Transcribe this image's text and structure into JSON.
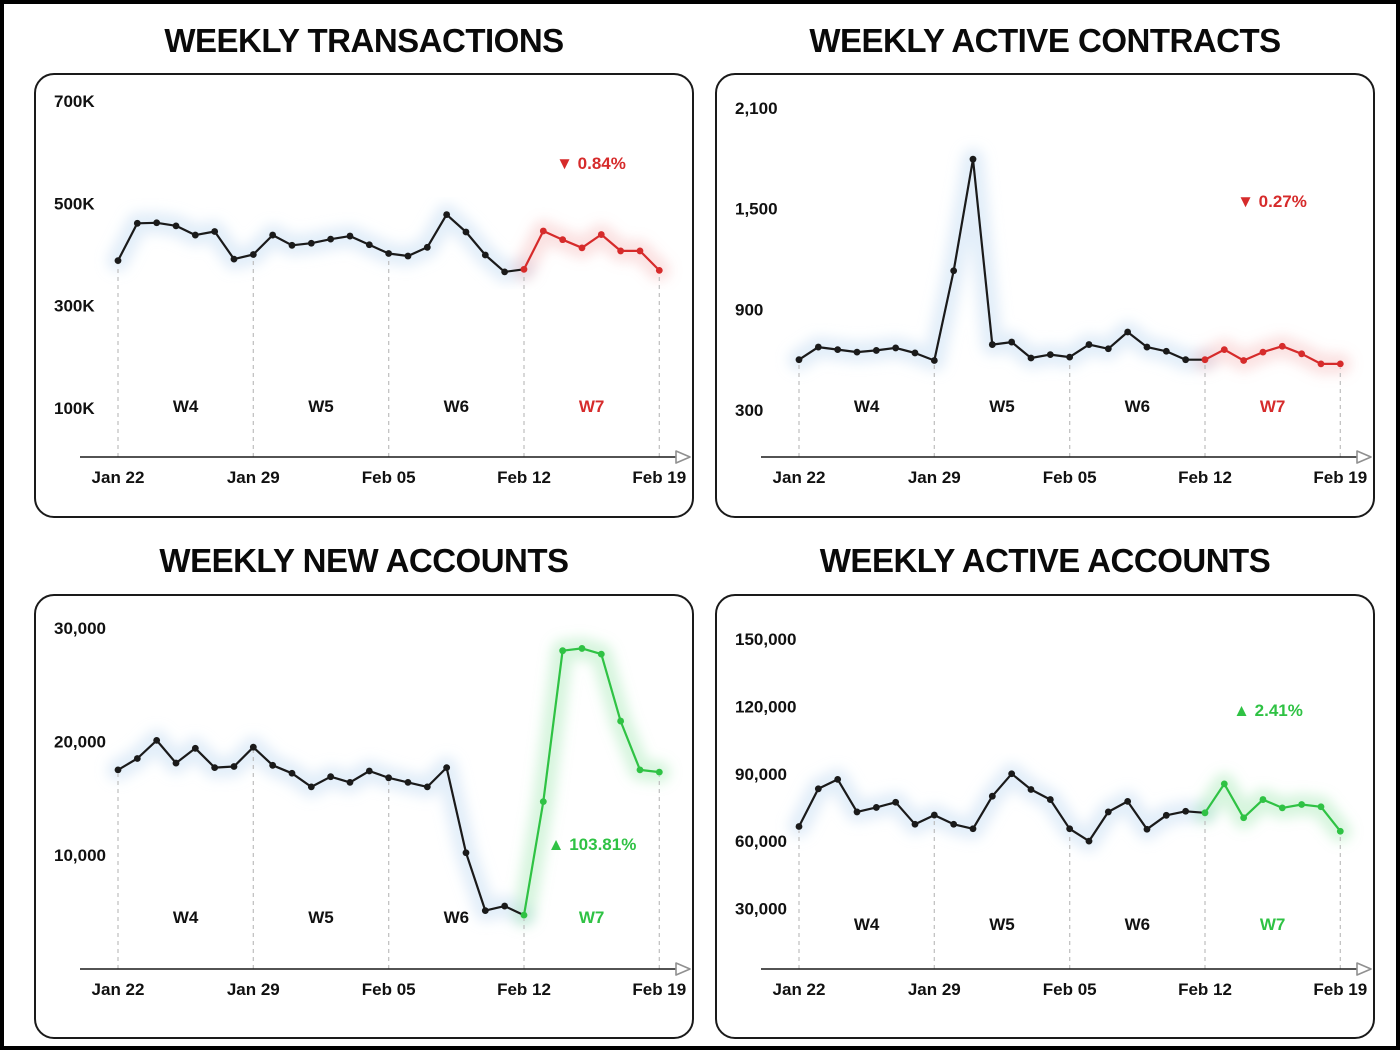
{
  "page": {
    "background": "#ffffff",
    "frame_border": "#000000"
  },
  "colors": {
    "line": "#1a1a1a",
    "red": "#d62b2b",
    "green": "#2fc244",
    "dashed": "#bdbdbd",
    "axis": "#1a1a1a",
    "tick_text": "#111111",
    "glow_black": "rgba(199,221,243,0.50)",
    "glow_red": "rgba(240,150,150,0.28)",
    "glow_green": "rgba(140,226,160,0.35)"
  },
  "chart_data": [
    {
      "type": "line",
      "title": "WEEKLY TRANSACTIONS",
      "badge": "▼ 0.84%",
      "trend": "down",
      "accent": "#d62b2b",
      "x_ticks": [
        "Jan 22",
        "Jan 29",
        "Feb 05",
        "Feb 12",
        "Feb 19"
      ],
      "week_labels": [
        "W4",
        "W5",
        "W6",
        "W7"
      ],
      "highlight_week": "W7",
      "highlight_start_index": 21,
      "y_ticks": [
        {
          "label": "700K",
          "value": 700000
        },
        {
          "label": "500K",
          "value": 500000
        },
        {
          "label": "300K",
          "value": 300000
        },
        {
          "label": "100K",
          "value": 100000
        }
      ],
      "series": [
        388000,
        461000,
        462000,
        456000,
        438000,
        445000,
        391000,
        400000,
        438000,
        418000,
        422000,
        430000,
        436000,
        419000,
        402000,
        397000,
        414000,
        478000,
        444000,
        399000,
        366000,
        371000,
        446000,
        429000,
        413000,
        439000,
        407000,
        407000,
        369000
      ]
    },
    {
      "type": "line",
      "title": "WEEKLY ACTIVE CONTRACTS",
      "badge": "▼ 0.27%",
      "trend": "down",
      "accent": "#d62b2b",
      "x_ticks": [
        "Jan 22",
        "Jan 29",
        "Feb 05",
        "Feb 12",
        "Feb 19"
      ],
      "week_labels": [
        "W4",
        "W5",
        "W6",
        "W7"
      ],
      "highlight_week": "W7",
      "highlight_start_index": 21,
      "y_ticks": [
        {
          "label": "2,100",
          "value": 2100
        },
        {
          "label": "1,500",
          "value": 1500
        },
        {
          "label": "900",
          "value": 900
        },
        {
          "label": "300",
          "value": 300
        }
      ],
      "series": [
        600,
        675,
        660,
        645,
        655,
        670,
        640,
        595,
        1130,
        1795,
        690,
        705,
        610,
        630,
        615,
        690,
        665,
        765,
        675,
        650,
        600,
        600,
        660,
        595,
        645,
        680,
        635,
        575,
        575
      ]
    },
    {
      "type": "line",
      "title": "WEEKLY NEW ACCOUNTS",
      "badge": "▲ 103.81%",
      "trend": "up",
      "accent": "#2fc244",
      "x_ticks": [
        "Jan 22",
        "Jan 29",
        "Feb 05",
        "Feb 12",
        "Feb 19"
      ],
      "week_labels": [
        "W4",
        "W5",
        "W6",
        "W7"
      ],
      "highlight_week": "W7",
      "highlight_start_index": 21,
      "y_ticks": [
        {
          "label": "30,000",
          "value": 30000
        },
        {
          "label": "20,000",
          "value": 20000
        },
        {
          "label": "10,000",
          "value": 10000
        }
      ],
      "series": [
        17500,
        18500,
        20100,
        18100,
        19400,
        17700,
        17800,
        19500,
        17900,
        17200,
        16000,
        16900,
        16400,
        17400,
        16800,
        16400,
        16000,
        17700,
        10200,
        5100,
        5500,
        4700,
        14700,
        28000,
        28200,
        27700,
        21800,
        17500,
        17300
      ]
    },
    {
      "type": "line",
      "title": "WEEKLY ACTIVE ACCOUNTS",
      "badge": "▲ 2.41%",
      "trend": "up",
      "accent": "#2fc244",
      "x_ticks": [
        "Jan 22",
        "Jan 29",
        "Feb 05",
        "Feb 12",
        "Feb 19"
      ],
      "week_labels": [
        "W4",
        "W5",
        "W6",
        "W7"
      ],
      "highlight_week": "W7",
      "highlight_start_index": 21,
      "y_ticks": [
        {
          "label": "150,000",
          "value": 150000
        },
        {
          "label": "120,000",
          "value": 120000
        },
        {
          "label": "90,000",
          "value": 90000
        },
        {
          "label": "60,000",
          "value": 60000
        },
        {
          "label": "30,000",
          "value": 30000
        }
      ],
      "series": [
        66500,
        83300,
        87500,
        73000,
        75000,
        77300,
        67500,
        71600,
        67500,
        65500,
        80000,
        90000,
        83000,
        78500,
        65500,
        60000,
        73000,
        77700,
        65300,
        71500,
        73300,
        72600,
        85500,
        70400,
        78500,
        74800,
        76300,
        75300,
        64400
      ]
    }
  ]
}
